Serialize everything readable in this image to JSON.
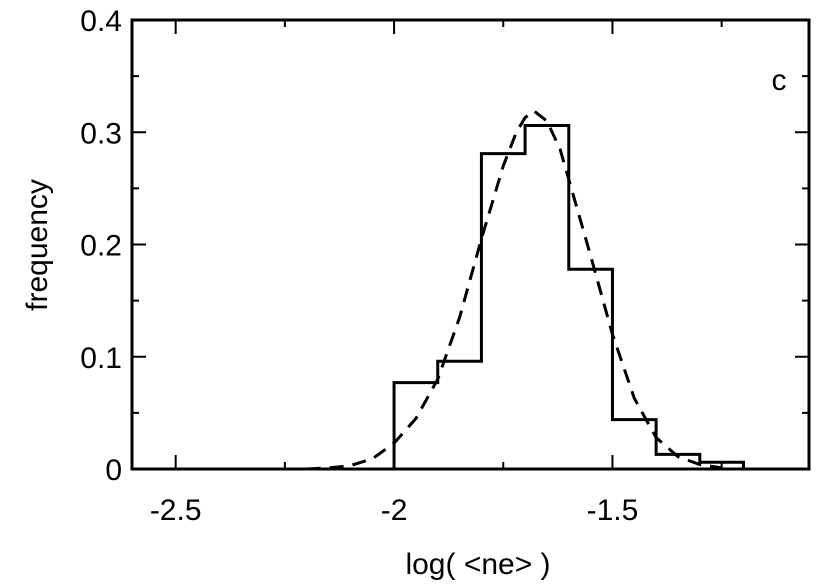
{
  "chart_data": {
    "type": "histogram",
    "panel_label": "c",
    "xlabel": "log( <ne> )",
    "ylabel": "frequency",
    "xlim": [
      -2.6,
      -1.05
    ],
    "ylim": [
      0,
      0.4
    ],
    "x_ticks": [
      -2.5,
      -2,
      -1.5
    ],
    "x_tick_labels": [
      "-2.5",
      "-2",
      "-1.5"
    ],
    "y_ticks": [
      0,
      0.1,
      0.2,
      0.3,
      0.4
    ],
    "y_tick_labels": [
      "0",
      "0.1",
      "0.2",
      "0.3",
      "0.4"
    ],
    "grid": false,
    "series": [
      {
        "style": "solid-step",
        "bin_edges": [
          -2.0,
          -1.9,
          -1.8,
          -1.7,
          -1.6,
          -1.5,
          -1.4,
          -1.3,
          -1.2
        ],
        "values": [
          0.077,
          0.096,
          0.281,
          0.306,
          0.178,
          0.044,
          0.013,
          0.006
        ]
      },
      {
        "style": "dashed-curve",
        "x": [
          -2.2,
          -2.15,
          -2.1,
          -2.05,
          -2.0,
          -1.95,
          -1.9,
          -1.85,
          -1.8,
          -1.75,
          -1.72,
          -1.7,
          -1.68,
          -1.65,
          -1.62,
          -1.6,
          -1.55,
          -1.5,
          -1.45,
          -1.4,
          -1.35,
          -1.3,
          -1.25
        ],
        "y": [
          0.0,
          0.001,
          0.003,
          0.009,
          0.023,
          0.045,
          0.08,
          0.135,
          0.205,
          0.27,
          0.3,
          0.313,
          0.319,
          0.31,
          0.285,
          0.258,
          0.19,
          0.12,
          0.063,
          0.028,
          0.011,
          0.004,
          0.001
        ]
      }
    ]
  }
}
